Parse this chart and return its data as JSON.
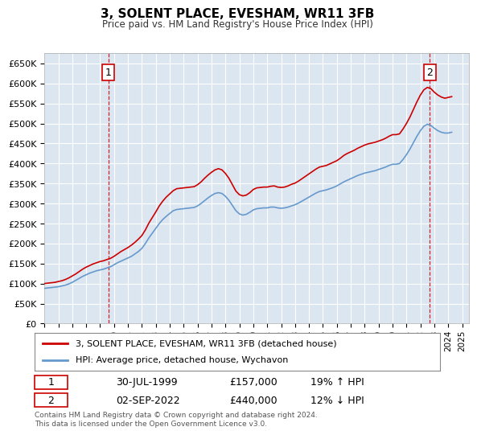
{
  "title": "3, SOLENT PLACE, EVESHAM, WR11 3FB",
  "subtitle": "Price paid vs. HM Land Registry's House Price Index (HPI)",
  "ylim": [
    0,
    675000
  ],
  "yticks": [
    0,
    50000,
    100000,
    150000,
    200000,
    250000,
    300000,
    350000,
    400000,
    450000,
    500000,
    550000,
    600000,
    650000
  ],
  "xlim_start": 1995.0,
  "xlim_end": 2025.5,
  "bg_color": "#dce6f1",
  "plot_bg": "#dce6f1",
  "grid_color": "#ffffff",
  "sale1_x": 1999.58,
  "sale1_y": 157000,
  "sale1_label": "1",
  "sale1_date": "30-JUL-1999",
  "sale1_price": "£157,000",
  "sale1_hpi": "19% ↑ HPI",
  "sale2_x": 2022.67,
  "sale2_y": 440000,
  "sale2_label": "2",
  "sale2_date": "02-SEP-2022",
  "sale2_price": "£440,000",
  "sale2_hpi": "12% ↓ HPI",
  "legend_line1": "3, SOLENT PLACE, EVESHAM, WR11 3FB (detached house)",
  "legend_line2": "HPI: Average price, detached house, Wychavon",
  "footer": "Contains HM Land Registry data © Crown copyright and database right 2024.\nThis data is licensed under the Open Government Licence v3.0.",
  "line_color_red": "#cc0000",
  "line_color_blue": "#6699cc",
  "hpi_years": [
    1995.0,
    1995.25,
    1995.5,
    1995.75,
    1996.0,
    1996.25,
    1996.5,
    1996.75,
    1997.0,
    1997.25,
    1997.5,
    1997.75,
    1998.0,
    1998.25,
    1998.5,
    1998.75,
    1999.0,
    1999.25,
    1999.5,
    1999.75,
    2000.0,
    2000.25,
    2000.5,
    2000.75,
    2001.0,
    2001.25,
    2001.5,
    2001.75,
    2002.0,
    2002.25,
    2002.5,
    2002.75,
    2003.0,
    2003.25,
    2003.5,
    2003.75,
    2004.0,
    2004.25,
    2004.5,
    2004.75,
    2005.0,
    2005.25,
    2005.5,
    2005.75,
    2006.0,
    2006.25,
    2006.5,
    2006.75,
    2007.0,
    2007.25,
    2007.5,
    2007.75,
    2008.0,
    2008.25,
    2008.5,
    2008.75,
    2009.0,
    2009.25,
    2009.5,
    2009.75,
    2010.0,
    2010.25,
    2010.5,
    2010.75,
    2011.0,
    2011.25,
    2011.5,
    2011.75,
    2012.0,
    2012.25,
    2012.5,
    2012.75,
    2013.0,
    2013.25,
    2013.5,
    2013.75,
    2014.0,
    2014.25,
    2014.5,
    2014.75,
    2015.0,
    2015.25,
    2015.5,
    2015.75,
    2016.0,
    2016.25,
    2016.5,
    2016.75,
    2017.0,
    2017.25,
    2017.5,
    2017.75,
    2018.0,
    2018.25,
    2018.5,
    2018.75,
    2019.0,
    2019.25,
    2019.5,
    2019.75,
    2020.0,
    2020.25,
    2020.5,
    2020.75,
    2021.0,
    2021.25,
    2021.5,
    2021.75,
    2022.0,
    2022.25,
    2022.5,
    2022.75,
    2023.0,
    2023.25,
    2023.5,
    2023.75,
    2024.0,
    2024.25
  ],
  "hpi_values": [
    88000,
    89000,
    90000,
    91000,
    92000,
    94000,
    96000,
    99000,
    103000,
    108000,
    113000,
    118000,
    122000,
    126000,
    129000,
    132000,
    134000,
    136000,
    139000,
    142000,
    147000,
    152000,
    156000,
    160000,
    164000,
    168000,
    174000,
    180000,
    188000,
    200000,
    214000,
    226000,
    238000,
    250000,
    260000,
    268000,
    275000,
    282000,
    285000,
    286000,
    287000,
    288000,
    289000,
    290000,
    294000,
    300000,
    307000,
    314000,
    320000,
    325000,
    327000,
    325000,
    318000,
    308000,
    295000,
    282000,
    274000,
    271000,
    273000,
    278000,
    284000,
    287000,
    288000,
    289000,
    289000,
    291000,
    291000,
    289000,
    288000,
    289000,
    291000,
    294000,
    297000,
    301000,
    306000,
    311000,
    316000,
    321000,
    326000,
    330000,
    332000,
    334000,
    337000,
    340000,
    344000,
    349000,
    354000,
    358000,
    362000,
    366000,
    370000,
    373000,
    376000,
    378000,
    380000,
    382000,
    385000,
    388000,
    391000,
    395000,
    398000,
    398000,
    400000,
    410000,
    422000,
    436000,
    452000,
    468000,
    482000,
    493000,
    498000,
    495000,
    488000,
    482000,
    478000,
    476000,
    476000,
    478000
  ],
  "red_years": [
    1995.0,
    1995.25,
    1995.5,
    1995.75,
    1996.0,
    1996.25,
    1996.5,
    1996.75,
    1997.0,
    1997.25,
    1997.5,
    1997.75,
    1998.0,
    1998.25,
    1998.5,
    1998.75,
    1999.0,
    1999.25,
    1999.5,
    1999.75,
    2000.0,
    2000.25,
    2000.5,
    2000.75,
    2001.0,
    2001.25,
    2001.5,
    2001.75,
    2002.0,
    2002.25,
    2002.5,
    2002.75,
    2003.0,
    2003.25,
    2003.5,
    2003.75,
    2004.0,
    2004.25,
    2004.5,
    2004.75,
    2005.0,
    2005.25,
    2005.5,
    2005.75,
    2006.0,
    2006.25,
    2006.5,
    2006.75,
    2007.0,
    2007.25,
    2007.5,
    2007.75,
    2008.0,
    2008.25,
    2008.5,
    2008.75,
    2009.0,
    2009.25,
    2009.5,
    2009.75,
    2010.0,
    2010.25,
    2010.5,
    2010.75,
    2011.0,
    2011.25,
    2011.5,
    2011.75,
    2012.0,
    2012.25,
    2012.5,
    2012.75,
    2013.0,
    2013.25,
    2013.5,
    2013.75,
    2014.0,
    2014.25,
    2014.5,
    2014.75,
    2015.0,
    2015.25,
    2015.5,
    2015.75,
    2016.0,
    2016.25,
    2016.5,
    2016.75,
    2017.0,
    2017.25,
    2017.5,
    2017.75,
    2018.0,
    2018.25,
    2018.5,
    2018.75,
    2019.0,
    2019.25,
    2019.5,
    2019.75,
    2020.0,
    2020.25,
    2020.5,
    2020.75,
    2021.0,
    2021.25,
    2021.5,
    2021.75,
    2022.0,
    2022.25,
    2022.5,
    2022.75,
    2023.0,
    2023.25,
    2023.5,
    2023.75,
    2024.0,
    2024.25
  ],
  "red_values": [
    100000,
    101000,
    102000,
    103000,
    105000,
    107000,
    110000,
    114000,
    119000,
    124000,
    130000,
    136000,
    141000,
    145000,
    149000,
    152000,
    155000,
    157000,
    160000,
    163000,
    168000,
    174000,
    180000,
    185000,
    190000,
    196000,
    203000,
    211000,
    220000,
    234000,
    251000,
    265000,
    279000,
    294000,
    306000,
    316000,
    324000,
    332000,
    337000,
    338000,
    339000,
    340000,
    341000,
    342000,
    347000,
    354000,
    363000,
    371000,
    378000,
    384000,
    387000,
    384000,
    375000,
    363000,
    347000,
    331000,
    322000,
    319000,
    321000,
    327000,
    335000,
    339000,
    340000,
    341000,
    341000,
    343000,
    344000,
    341000,
    340000,
    341000,
    344000,
    348000,
    351000,
    356000,
    362000,
    368000,
    374000,
    380000,
    386000,
    391000,
    393000,
    395000,
    399000,
    403000,
    407000,
    413000,
    420000,
    425000,
    429000,
    433000,
    438000,
    442000,
    446000,
    449000,
    451000,
    453000,
    456000,
    459000,
    463000,
    468000,
    472000,
    472000,
    474000,
    486000,
    500000,
    516000,
    535000,
    554000,
    571000,
    584000,
    590000,
    587000,
    578000,
    571000,
    566000,
    563000,
    565000,
    567000
  ]
}
